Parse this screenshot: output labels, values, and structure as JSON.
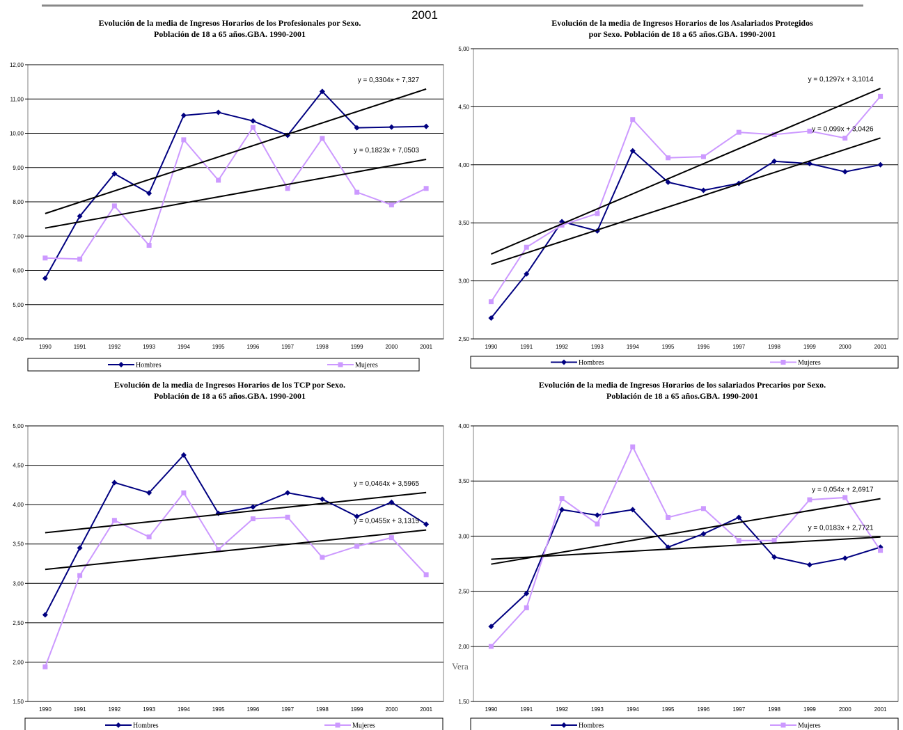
{
  "header_text": "2001",
  "side_text": "Vera",
  "chart_data": [
    {
      "type": "line",
      "title": [
        "Evolución de la media de Ingresos Horarios de los Profesionales por Sexo.",
        "Población de 18 a 65 años.GBA. 1990-2001"
      ],
      "categories": [
        "1990",
        "1991",
        "1992",
        "1993",
        "1994",
        "1995",
        "1996",
        "1997",
        "1998",
        "1999",
        "2000",
        "2001"
      ],
      "ylim": [
        4,
        12
      ],
      "yticks": [
        {
          "value": 4,
          "label": "4,00"
        },
        {
          "value": 5,
          "label": "5,00"
        },
        {
          "value": 6,
          "label": "6,00"
        },
        {
          "value": 7,
          "label": "7,00"
        },
        {
          "value": 8,
          "label": "8,00"
        },
        {
          "value": 9,
          "label": "9,00"
        },
        {
          "value": 10,
          "label": "10,00"
        },
        {
          "value": 11,
          "label": "11,00"
        },
        {
          "value": 12,
          "label": "12,00"
        }
      ],
      "grid": true,
      "legend": "bottom",
      "series": [
        {
          "name": "Hombres",
          "color": "#000080",
          "marker": "diamond",
          "values": [
            5.77,
            7.58,
            8.82,
            8.25,
            10.52,
            10.61,
            10.36,
            9.94,
            11.22,
            10.16,
            10.18,
            10.2
          ],
          "trend": {
            "slope": 0.3304,
            "intercept": 7.327,
            "label": "y = 0,3304x + 7,327"
          }
        },
        {
          "name": "Mujeres",
          "color": "#cc99ff",
          "marker": "square",
          "values": [
            6.36,
            6.33,
            7.88,
            6.73,
            9.81,
            8.63,
            10.17,
            8.39,
            9.85,
            8.28,
            7.91,
            8.39
          ],
          "trend": {
            "slope": 0.1823,
            "intercept": 7.0503,
            "label": "y = 0,1823x + 7,0503"
          }
        }
      ]
    },
    {
      "type": "line",
      "title": [
        "Evolución de la media de Ingresos Horarios de los Asalariados Protegidos",
        "por Sexo. Población de 18 a 65 años.GBA. 1990-2001"
      ],
      "categories": [
        "1990",
        "1991",
        "1992",
        "1993",
        "1994",
        "1995",
        "1996",
        "1997",
        "1998",
        "1999",
        "2000",
        "2001"
      ],
      "ylim": [
        2.5,
        5
      ],
      "yticks": [
        {
          "value": 2.5,
          "label": "2,50"
        },
        {
          "value": 3,
          "label": "3,00"
        },
        {
          "value": 3.5,
          "label": "3,50"
        },
        {
          "value": 4,
          "label": "4,00"
        },
        {
          "value": 4.5,
          "label": "4,50"
        },
        {
          "value": 5,
          "label": "5,00"
        }
      ],
      "grid": true,
      "legend": "bottom",
      "series": [
        {
          "name": "Hombres",
          "color": "#000080",
          "marker": "diamond",
          "values": [
            2.68,
            3.06,
            3.51,
            3.43,
            4.12,
            3.85,
            3.78,
            3.84,
            4.03,
            4.01,
            3.94,
            4.0
          ],
          "trend": {
            "slope": 0.099,
            "intercept": 3.0426,
            "label": "y = 0,099x + 3,0426"
          }
        },
        {
          "name": "Mujeres",
          "color": "#cc99ff",
          "marker": "square",
          "values": [
            2.82,
            3.29,
            3.48,
            3.58,
            4.39,
            4.06,
            4.07,
            4.28,
            4.26,
            4.29,
            4.23,
            4.59
          ],
          "trend": {
            "slope": 0.1297,
            "intercept": 3.1014,
            "label": "y = 0,1297x + 3,1014"
          }
        }
      ]
    },
    {
      "type": "line",
      "title": [
        "Evolución de la media de Ingresos Horarios de los TCP por Sexo.",
        "Población de 18 a 65 años.GBA. 1990-2001"
      ],
      "categories": [
        "1990",
        "1991",
        "1992",
        "1993",
        "1994",
        "1995",
        "1996",
        "1997",
        "1998",
        "1999",
        "2000",
        "2001"
      ],
      "ylim": [
        1.5,
        5
      ],
      "yticks": [
        {
          "value": 1.5,
          "label": "1,50"
        },
        {
          "value": 2,
          "label": "2,00"
        },
        {
          "value": 2.5,
          "label": "2,50"
        },
        {
          "value": 3,
          "label": "3,00"
        },
        {
          "value": 3.5,
          "label": "3,50"
        },
        {
          "value": 4,
          "label": "4,00"
        },
        {
          "value": 4.5,
          "label": "4,50"
        },
        {
          "value": 5,
          "label": "5,00"
        }
      ],
      "grid": true,
      "legend": "bottom",
      "series": [
        {
          "name": "Hombres",
          "color": "#000080",
          "marker": "diamond",
          "values": [
            2.6,
            3.45,
            4.28,
            4.15,
            4.63,
            3.89,
            3.97,
            4.15,
            4.07,
            3.85,
            4.03,
            3.75
          ],
          "trend": {
            "slope": 0.0464,
            "intercept": 3.5965,
            "label": "y = 0,0464x + 3,5965"
          }
        },
        {
          "name": "Mujeres",
          "color": "#cc99ff",
          "marker": "square",
          "values": [
            1.94,
            3.1,
            3.8,
            3.59,
            4.15,
            3.43,
            3.82,
            3.84,
            3.33,
            3.47,
            3.58,
            3.11
          ],
          "trend": {
            "slope": 0.0455,
            "intercept": 3.1315,
            "label": "y = 0,0455x + 3,1315"
          }
        }
      ]
    },
    {
      "type": "line",
      "title": [
        "Evolución de la media de Ingresos Horarios de los salariados Precarios por Sexo.",
        "Población de 18 a 65 años.GBA. 1990-2001"
      ],
      "categories": [
        "1990",
        "1991",
        "1992",
        "1993",
        "1994",
        "1995",
        "1996",
        "1997",
        "1998",
        "1999",
        "2000",
        "2001"
      ],
      "ylim": [
        1.5,
        4
      ],
      "yticks": [
        {
          "value": 1.5,
          "label": "1,50"
        },
        {
          "value": 2,
          "label": "2,00"
        },
        {
          "value": 2.5,
          "label": "2,50"
        },
        {
          "value": 3,
          "label": "3,00"
        },
        {
          "value": 3.5,
          "label": "3,50"
        },
        {
          "value": 4,
          "label": "4,00"
        }
      ],
      "grid": true,
      "legend": "bottom",
      "series": [
        {
          "name": "Hombres",
          "color": "#000080",
          "marker": "diamond",
          "values": [
            2.18,
            2.48,
            3.24,
            3.19,
            3.24,
            2.9,
            3.02,
            3.17,
            2.81,
            2.74,
            2.8,
            2.9
          ],
          "trend": {
            "slope": 0.054,
            "intercept": 2.6917,
            "label": "y = 0,054x + 2,6917"
          }
        },
        {
          "name": "Mujeres",
          "color": "#cc99ff",
          "marker": "square",
          "values": [
            2.0,
            2.35,
            3.34,
            3.11,
            3.81,
            3.17,
            3.25,
            2.96,
            2.96,
            3.33,
            3.35,
            2.87
          ],
          "trend": {
            "slope": 0.0183,
            "intercept": 2.7721,
            "label": "y = 0,0183x + 2,7721"
          }
        }
      ]
    }
  ]
}
